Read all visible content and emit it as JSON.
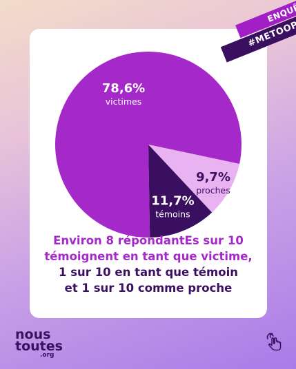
{
  "ribbon": {
    "top": "ENQUÊTE",
    "bottom": "#METOOPOLICE"
  },
  "chart_data": {
    "type": "pie",
    "slices": [
      {
        "label": "victimes",
        "value": 78.6,
        "value_label": "78,6%",
        "color": "#a529c9",
        "text_color": "#ffffff"
      },
      {
        "label": "proches",
        "value": 9.7,
        "value_label": "9,7%",
        "color": "#e9b3f2",
        "text_color": "#3a0f60"
      },
      {
        "label": "témoins",
        "value": 11.7,
        "value_label": "11,7%",
        "color": "#3a0f60",
        "text_color": "#ffffff"
      }
    ]
  },
  "caption": {
    "line1": "Environ 8 répondantEs sur 10",
    "line2": "témoignent en tant que victime,",
    "line3": "1 sur 10 en tant que témoin",
    "line4": "et 1 sur 10 comme proche"
  },
  "logo": {
    "line1": "nous",
    "line2": "toutes",
    "line3": ".org"
  },
  "icons": {
    "swipe": "swipe-hand-icon"
  }
}
